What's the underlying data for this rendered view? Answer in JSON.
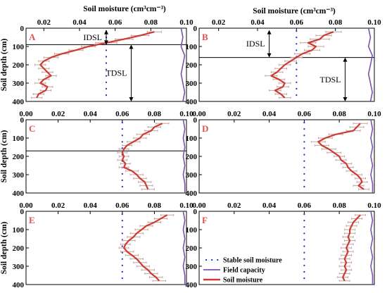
{
  "figure": {
    "xlabel": "Soil moisture (cm³cm⁻³)",
    "ylabel": "Soil depth (cm)",
    "colors": {
      "soil_moisture": "#cc3b32",
      "error_bar": "#c9a39f",
      "field_capacity": "#7b52ab",
      "stable": "#1f2ecf",
      "annotation": "#000000"
    }
  },
  "legend": {
    "stable": "Stable soil moisture",
    "field_capacity": "Field capacity",
    "soil_moisture": "Soil moisture"
  },
  "chart_data": [
    {
      "panel": "A",
      "type": "line",
      "xlim": [
        0.01,
        0.1
      ],
      "xticks": [
        "0.02",
        "0.04",
        "0.06",
        "0.08",
        "0.10"
      ],
      "ylim": [
        0,
        400
      ],
      "yticks": [
        "0",
        "100",
        "200",
        "300",
        "400"
      ],
      "stable_soil_moisture": 0.055,
      "soil_moisture": {
        "depth": [
          20,
          40,
          60,
          80,
          100,
          120,
          140,
          160,
          180,
          200,
          220,
          240,
          260,
          280,
          300,
          320,
          340,
          360,
          380
        ],
        "value": [
          0.082,
          0.074,
          0.065,
          0.055,
          0.045,
          0.038,
          0.03,
          0.024,
          0.02,
          0.018,
          0.02,
          0.022,
          0.024,
          0.02,
          0.018,
          0.022,
          0.021,
          0.017,
          0.016
        ],
        "error": [
          0.004,
          0.005,
          0.005,
          0.006,
          0.004,
          0.004,
          0.004,
          0.004,
          0.003,
          0.003,
          0.003,
          0.003,
          0.003,
          0.003,
          0.003,
          0.003,
          0.003,
          0.003,
          0.003
        ]
      },
      "field_capacity": {
        "depth": [
          0,
          50,
          100,
          150,
          200,
          250,
          300,
          350,
          400
        ],
        "value": [
          0.097,
          0.098,
          0.097,
          0.099,
          0.098,
          0.097,
          0.098,
          0.099,
          0.098
        ]
      },
      "hline_depth": 90,
      "annotations": [
        {
          "text": "IDSL",
          "from": 10,
          "to": 90,
          "at": 0.055
        },
        {
          "text": "TDSL",
          "from": 90,
          "to": 400,
          "at": 0.069
        }
      ]
    },
    {
      "panel": "B",
      "type": "line",
      "xlim": [
        0.01,
        0.1
      ],
      "xticks": [
        "0.02",
        "0.04",
        "0.06",
        "0.08",
        "0.10"
      ],
      "ylim": [
        0,
        400
      ],
      "yticks": [
        "0",
        "100",
        "200",
        "300",
        "400"
      ],
      "stable_soil_moisture": 0.06,
      "soil_moisture": {
        "depth": [
          20,
          40,
          60,
          80,
          100,
          120,
          140,
          160,
          180,
          200,
          220,
          240,
          260,
          280,
          300,
          320,
          340,
          360,
          380
        ],
        "value": [
          0.079,
          0.074,
          0.072,
          0.066,
          0.07,
          0.068,
          0.063,
          0.06,
          0.057,
          0.054,
          0.052,
          0.05,
          0.047,
          0.051,
          0.054,
          0.053,
          0.049,
          0.052,
          0.054
        ],
        "error": [
          0.004,
          0.004,
          0.005,
          0.004,
          0.004,
          0.004,
          0.004,
          0.003,
          0.003,
          0.003,
          0.003,
          0.003,
          0.003,
          0.003,
          0.003,
          0.003,
          0.003,
          0.003,
          0.003
        ]
      },
      "field_capacity": {
        "depth": [
          0,
          50,
          100,
          150,
          200,
          250,
          300,
          350,
          400
        ],
        "value": [
          0.097,
          0.098,
          0.097,
          0.099,
          0.098,
          0.097,
          0.098,
          0.099,
          0.098
        ]
      },
      "hline_depth": 160,
      "annotations": [
        {
          "text": "IDSL",
          "from": 10,
          "to": 160,
          "at": 0.046
        },
        {
          "text": "TDSL",
          "from": 160,
          "to": 400,
          "at": 0.085
        }
      ]
    },
    {
      "panel": "C",
      "type": "line",
      "xlim": [
        0,
        0.1
      ],
      "xticks": [
        "0.00",
        "0.02",
        "0.04",
        "0.06",
        "0.08",
        "0.10"
      ],
      "ylim": [
        0,
        400
      ],
      "yticks": [
        "0",
        "100",
        "200",
        "300",
        "400"
      ],
      "stable_soil_moisture": 0.06,
      "soil_moisture": {
        "depth": [
          20,
          40,
          60,
          80,
          100,
          120,
          140,
          160,
          180,
          200,
          220,
          240,
          260,
          280,
          300,
          320,
          340,
          360,
          380
        ],
        "value": [
          0.085,
          0.08,
          0.078,
          0.073,
          0.071,
          0.067,
          0.063,
          0.061,
          0.06,
          0.061,
          0.06,
          0.062,
          0.061,
          0.066,
          0.069,
          0.071,
          0.074,
          0.075,
          0.076
        ],
        "error": [
          0.004,
          0.004,
          0.004,
          0.004,
          0.004,
          0.004,
          0.003,
          0.003,
          0.003,
          0.003,
          0.003,
          0.003,
          0.003,
          0.004,
          0.004,
          0.004,
          0.004,
          0.004,
          0.004
        ]
      },
      "field_capacity": {
        "depth": [
          0,
          50,
          100,
          150,
          200,
          250,
          300,
          350,
          400
        ],
        "value": [
          0.098,
          0.099,
          0.098,
          0.099,
          0.098,
          0.099,
          0.098,
          0.099,
          0.099
        ]
      },
      "hline_depth": 170,
      "annotations": []
    },
    {
      "panel": "D",
      "type": "line",
      "xlim": [
        0,
        0.1
      ],
      "xticks": [
        "0.00",
        "0.02",
        "0.04",
        "0.06",
        "0.08",
        "0.10"
      ],
      "ylim": [
        0,
        400
      ],
      "yticks": [
        "0",
        "100",
        "200",
        "300",
        "400"
      ],
      "stable_soil_moisture": 0.06,
      "soil_moisture": {
        "depth": [
          20,
          40,
          60,
          80,
          100,
          120,
          140,
          160,
          180,
          200,
          220,
          240,
          260,
          280,
          300,
          320,
          340,
          360,
          380
        ],
        "value": [
          0.092,
          0.09,
          0.088,
          0.078,
          0.072,
          0.068,
          0.07,
          0.074,
          0.077,
          0.08,
          0.081,
          0.084,
          0.085,
          0.087,
          0.09,
          0.092,
          0.093,
          0.091,
          0.094
        ],
        "error": [
          0.004,
          0.004,
          0.004,
          0.004,
          0.004,
          0.004,
          0.004,
          0.004,
          0.004,
          0.003,
          0.003,
          0.003,
          0.003,
          0.003,
          0.003,
          0.003,
          0.003,
          0.003,
          0.003
        ]
      },
      "field_capacity": {
        "depth": [
          0,
          50,
          100,
          150,
          200,
          250,
          300,
          350,
          400
        ],
        "value": [
          0.098,
          0.099,
          0.098,
          0.099,
          0.098,
          0.099,
          0.098,
          0.099,
          0.099
        ]
      },
      "hline_depth": null,
      "annotations": []
    },
    {
      "panel": "E",
      "type": "line",
      "xlim": [
        0,
        0.1
      ],
      "xticks": [
        "0.00",
        "0.02",
        "0.04",
        "0.06",
        "0.08",
        "0.10"
      ],
      "ylim": [
        0,
        400
      ],
      "yticks": [
        "0",
        "100",
        "200",
        "300",
        "400"
      ],
      "stable_soil_moisture": 0.06,
      "soil_moisture": {
        "depth": [
          20,
          40,
          60,
          80,
          100,
          120,
          140,
          160,
          180,
          200,
          220,
          240,
          260,
          280,
          300,
          320,
          340,
          360,
          380
        ],
        "value": [
          0.088,
          0.084,
          0.08,
          0.075,
          0.072,
          0.069,
          0.067,
          0.064,
          0.062,
          0.061,
          0.063,
          0.066,
          0.069,
          0.071,
          0.073,
          0.076,
          0.078,
          0.081,
          0.083
        ],
        "error": [
          0.004,
          0.004,
          0.004,
          0.004,
          0.004,
          0.004,
          0.004,
          0.004,
          0.003,
          0.003,
          0.004,
          0.004,
          0.004,
          0.004,
          0.004,
          0.004,
          0.004,
          0.004,
          0.004
        ]
      },
      "field_capacity": {
        "depth": [
          0,
          50,
          100,
          150,
          200,
          250,
          300,
          350,
          400
        ],
        "value": [
          0.098,
          0.099,
          0.098,
          0.099,
          0.098,
          0.099,
          0.098,
          0.099,
          0.099
        ]
      },
      "hline_depth": null,
      "annotations": []
    },
    {
      "panel": "F",
      "type": "line",
      "xlim": [
        0,
        0.1
      ],
      "xticks": [
        "0.00",
        "0.02",
        "0.04",
        "0.06",
        "0.08",
        "0.10"
      ],
      "ylim": [
        0,
        400
      ],
      "yticks": [
        "0",
        "100",
        "200",
        "300",
        "400"
      ],
      "stable_soil_moisture": 0.06,
      "soil_moisture": {
        "depth": [
          20,
          40,
          60,
          80,
          100,
          120,
          140,
          160,
          180,
          200,
          220,
          240,
          260,
          280,
          300,
          320,
          340,
          360,
          380
        ],
        "value": [
          0.092,
          0.09,
          0.088,
          0.087,
          0.086,
          0.086,
          0.085,
          0.086,
          0.085,
          0.084,
          0.085,
          0.084,
          0.083,
          0.084,
          0.083,
          0.084,
          0.083,
          0.082,
          0.083
        ],
        "error": [
          0.003,
          0.003,
          0.003,
          0.003,
          0.003,
          0.003,
          0.003,
          0.003,
          0.003,
          0.003,
          0.003,
          0.003,
          0.003,
          0.003,
          0.003,
          0.003,
          0.003,
          0.003,
          0.003
        ]
      },
      "field_capacity": {
        "depth": [
          0,
          50,
          100,
          150,
          200,
          250,
          300,
          350,
          400
        ],
        "value": [
          0.098,
          0.099,
          0.098,
          0.099,
          0.098,
          0.099,
          0.098,
          0.099,
          0.099
        ]
      },
      "hline_depth": null,
      "annotations": [],
      "show_legend": true
    }
  ]
}
